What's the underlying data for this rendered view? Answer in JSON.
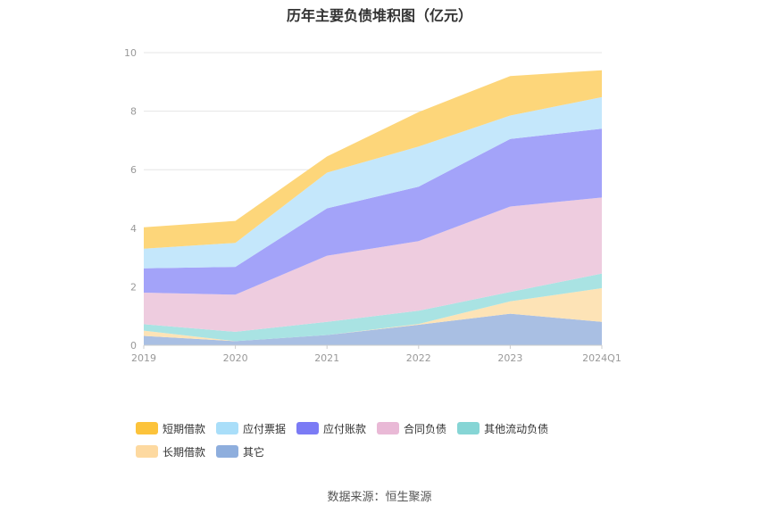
{
  "title": "历年主要负债堆积图（亿元）",
  "source": "数据来源：恒生聚源",
  "chart_data": {
    "type": "area",
    "stacked": true,
    "categories": [
      "2019",
      "2020",
      "2021",
      "2022",
      "2023",
      "2024Q1"
    ],
    "ylim": [
      0,
      10
    ],
    "yticks": [
      0,
      2,
      4,
      6,
      8,
      10
    ],
    "grid": true,
    "legend_position": "bottom",
    "series": [
      {
        "name": "其它",
        "color": "#a9bfe3",
        "legend_color": "#8eaedd",
        "values": [
          0.32,
          0.14,
          0.35,
          0.7,
          1.08,
          0.8
        ]
      },
      {
        "name": "长期借款",
        "color": "#fde3b6",
        "legend_color": "#fdd9a0",
        "values": [
          0.18,
          0.0,
          0.0,
          0.03,
          0.42,
          1.15
        ]
      },
      {
        "name": "其他流动负债",
        "color": "#a9e3e3",
        "legend_color": "#86d5d5",
        "values": [
          0.22,
          0.32,
          0.45,
          0.45,
          0.32,
          0.5
        ]
      },
      {
        "name": "合同负债",
        "color": "#eeccdf",
        "legend_color": "#e9b9d6",
        "values": [
          1.08,
          1.27,
          2.26,
          2.38,
          2.92,
          2.6
        ]
      },
      {
        "name": "应付账款",
        "color": "#a3a3f9",
        "legend_color": "#7b7bf5",
        "values": [
          0.83,
          0.95,
          1.62,
          1.86,
          2.31,
          2.35
        ]
      },
      {
        "name": "应付票据",
        "color": "#c4e7fb",
        "legend_color": "#a9def9",
        "values": [
          0.67,
          0.82,
          1.22,
          1.37,
          0.8,
          1.08
        ]
      },
      {
        "name": "短期借款",
        "color": "#fdd67a",
        "legend_color": "#fcc33b",
        "values": [
          0.73,
          0.75,
          0.55,
          1.18,
          1.35,
          0.92
        ]
      }
    ]
  }
}
